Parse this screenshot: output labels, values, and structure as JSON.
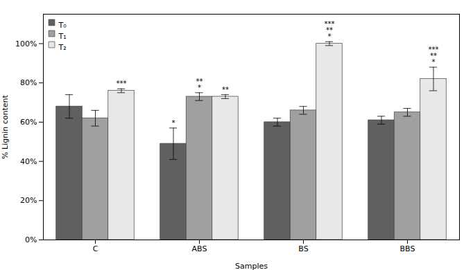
{
  "chart_data": {
    "type": "bar",
    "xlabel": "Samples",
    "ylabel": "% Lignin content",
    "categories": [
      "C",
      "ABS",
      "BS",
      "BBS"
    ],
    "series": [
      {
        "name": "T₀",
        "color": "#606060",
        "values": [
          68,
          49,
          60,
          61
        ],
        "errors": [
          6,
          8,
          2,
          2
        ],
        "annotations": [
          [],
          [
            "*"
          ],
          [],
          []
        ]
      },
      {
        "name": "T₁",
        "color": "#a0a0a0",
        "values": [
          62,
          73,
          66,
          65
        ],
        "errors": [
          4,
          2,
          2,
          2
        ],
        "annotations": [
          [],
          [
            "*",
            "**"
          ],
          [],
          []
        ]
      },
      {
        "name": "T₂",
        "color": "#e8e8e8",
        "values": [
          76,
          73,
          100,
          82
        ],
        "errors": [
          1,
          1,
          1,
          6
        ],
        "annotations": [
          [
            "***"
          ],
          [
            "**"
          ],
          [
            "*",
            "**",
            "***"
          ],
          [
            "*",
            "**",
            "***"
          ]
        ]
      }
    ],
    "ylim": [
      0,
      115
    ],
    "yticks": [
      {
        "value": 0,
        "label": "0%"
      },
      {
        "value": 20,
        "label": "20%"
      },
      {
        "value": 40,
        "label": "40%"
      },
      {
        "value": 60,
        "label": "60%"
      },
      {
        "value": 80,
        "label": "80%"
      },
      {
        "value": 100,
        "label": "100%"
      }
    ],
    "grid": false,
    "legend": "upper left"
  }
}
